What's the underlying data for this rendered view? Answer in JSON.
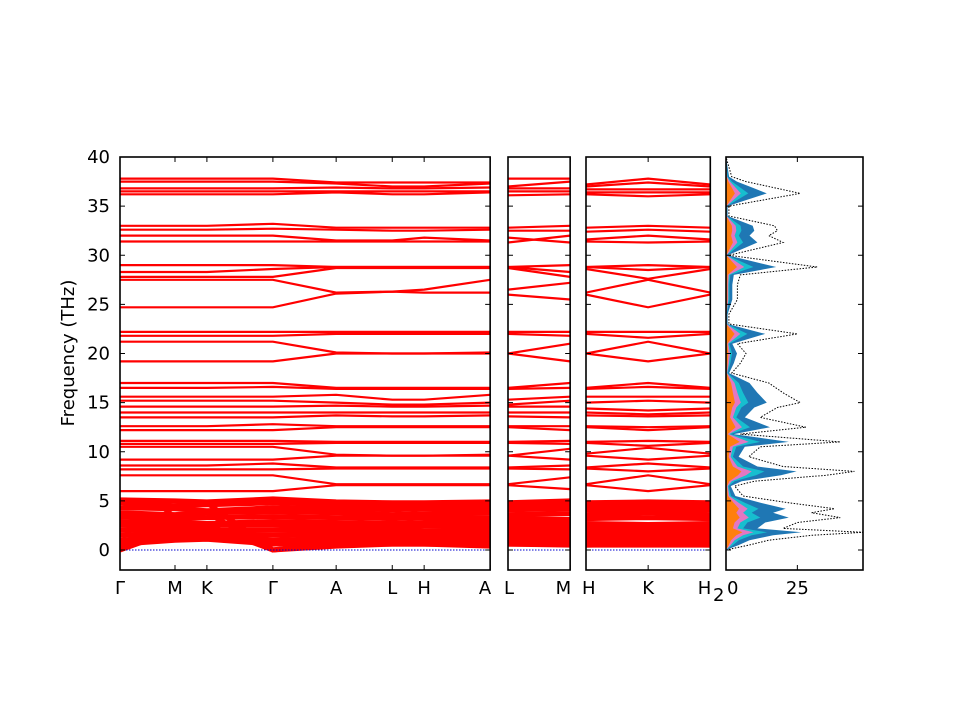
{
  "chart_data": {
    "type": "line",
    "title": "",
    "ylabel": "Frequency (THz)",
    "ylim": [
      -2,
      40
    ],
    "yticks": [
      0,
      5,
      10,
      15,
      20,
      25,
      30,
      35,
      40
    ],
    "band_color": "#ff0000",
    "zero_line_color": "#0000cc",
    "kpoint_order": [
      "Γ",
      "M",
      "K",
      "Γ",
      "A",
      "L",
      "H",
      "A",
      "L",
      "M",
      "H",
      "K",
      "H"
    ],
    "panels": [
      {
        "labels": [
          "Γ",
          "M",
          "K",
          "Γ",
          "A",
          "L",
          "H",
          "A"
        ],
        "distances": [
          0,
          1,
          1.58,
          2.78,
          3.93,
          4.95,
          5.53,
          6.73
        ],
        "start": 0
      },
      {
        "labels": [
          "L",
          "M"
        ],
        "distances": [
          0,
          1.13
        ],
        "start": 8
      },
      {
        "labels": [
          "H",
          "K",
          "H"
        ],
        "distances": [
          0,
          1.13,
          2.26
        ],
        "start": 10
      }
    ],
    "stray_label": "2",
    "bands": [
      [
        37.8,
        37.8,
        37.8,
        37.8,
        37.4,
        37.4,
        37.4,
        37.4,
        37.8,
        37.8,
        37.2,
        37.8,
        37.2
      ],
      [
        37.5,
        37.5,
        37.5,
        37.5,
        37.3,
        37.0,
        37.0,
        37.3,
        37.0,
        37.5,
        37.0,
        37.4,
        37.0
      ],
      [
        36.8,
        36.8,
        36.8,
        36.8,
        36.9,
        36.8,
        36.8,
        36.9,
        36.8,
        36.8,
        36.7,
        36.7,
        36.7
      ],
      [
        36.5,
        36.5,
        36.5,
        36.5,
        36.5,
        36.5,
        36.5,
        36.5,
        36.5,
        36.5,
        36.4,
        36.4,
        36.4
      ],
      [
        36.2,
        36.2,
        36.2,
        36.2,
        36.4,
        36.2,
        36.2,
        36.4,
        36.1,
        36.2,
        36.2,
        36.0,
        36.2
      ],
      [
        33.0,
        33.0,
        33.0,
        33.2,
        32.8,
        32.8,
        32.8,
        32.8,
        32.8,
        33.0,
        32.8,
        33.0,
        32.8
      ],
      [
        32.6,
        32.6,
        32.6,
        32.7,
        32.6,
        32.5,
        32.5,
        32.6,
        32.5,
        32.5,
        32.4,
        32.6,
        32.4
      ],
      [
        32.0,
        32.0,
        32.0,
        32.0,
        31.5,
        31.5,
        31.8,
        31.5,
        31.3,
        32.0,
        31.6,
        32.0,
        31.6
      ],
      [
        31.4,
        31.4,
        31.4,
        31.4,
        31.4,
        31.4,
        31.4,
        31.4,
        31.8,
        31.3,
        31.4,
        31.3,
        31.4
      ],
      [
        29.0,
        29.0,
        29.0,
        29.0,
        28.8,
        28.8,
        28.8,
        28.8,
        28.8,
        29.0,
        28.8,
        29.0,
        28.8
      ],
      [
        28.3,
        28.3,
        28.3,
        28.6,
        28.8,
        28.8,
        28.8,
        28.8,
        28.8,
        28.3,
        28.8,
        28.5,
        28.8
      ],
      [
        27.8,
        27.8,
        27.8,
        27.8,
        28.7,
        28.7,
        28.7,
        28.7,
        28.7,
        27.8,
        28.6,
        27.6,
        28.6
      ],
      [
        27.5,
        27.5,
        27.5,
        27.5,
        26.2,
        26.3,
        26.5,
        27.5,
        26.5,
        27.2,
        26.2,
        27.5,
        26.2
      ],
      [
        24.7,
        24.7,
        24.7,
        24.7,
        26.1,
        26.3,
        26.2,
        26.2,
        26.0,
        25.5,
        26.0,
        24.7,
        26.0
      ],
      [
        22.2,
        22.2,
        22.2,
        22.2,
        22.2,
        22.2,
        22.2,
        22.2,
        22.2,
        22.2,
        22.2,
        22.2,
        22.2
      ],
      [
        21.8,
        21.8,
        21.8,
        21.8,
        22.0,
        22.0,
        22.0,
        22.0,
        22.0,
        21.8,
        22.0,
        21.6,
        22.0
      ],
      [
        21.2,
        21.2,
        21.2,
        21.2,
        20.1,
        20.0,
        20.0,
        20.1,
        20.0,
        21.0,
        20.0,
        21.2,
        20.0
      ],
      [
        19.2,
        19.2,
        19.2,
        19.2,
        20.0,
        20.0,
        20.0,
        20.0,
        20.0,
        19.2,
        20.0,
        19.2,
        20.0
      ],
      [
        17.0,
        17.0,
        17.0,
        17.0,
        16.5,
        16.5,
        16.5,
        16.5,
        16.5,
        17.0,
        16.5,
        17.0,
        16.5
      ],
      [
        16.5,
        16.5,
        16.5,
        16.6,
        16.4,
        16.4,
        16.4,
        16.4,
        16.4,
        16.5,
        16.4,
        16.6,
        16.4
      ],
      [
        15.6,
        15.6,
        15.6,
        15.6,
        15.8,
        15.3,
        15.3,
        15.8,
        15.3,
        15.6,
        15.6,
        15.6,
        15.6
      ],
      [
        15.2,
        15.2,
        15.2,
        15.2,
        15.0,
        14.8,
        14.8,
        15.0,
        14.8,
        15.2,
        15.0,
        15.2,
        15.0
      ],
      [
        14.6,
        14.6,
        14.6,
        14.6,
        14.7,
        14.6,
        14.6,
        14.7,
        14.6,
        14.6,
        14.4,
        14.2,
        14.4
      ],
      [
        14.0,
        14.0,
        14.0,
        14.0,
        14.0,
        14.0,
        14.0,
        14.0,
        14.0,
        14.0,
        14.0,
        13.8,
        14.0
      ],
      [
        13.5,
        13.5,
        13.5,
        13.5,
        13.7,
        13.6,
        13.6,
        13.7,
        13.6,
        13.5,
        13.7,
        13.6,
        13.7
      ],
      [
        12.6,
        12.6,
        12.6,
        12.8,
        12.6,
        12.6,
        12.6,
        12.6,
        12.6,
        12.6,
        12.6,
        12.5,
        12.6
      ],
      [
        12.2,
        12.2,
        12.2,
        12.2,
        12.5,
        12.5,
        12.5,
        12.5,
        12.5,
        12.2,
        12.5,
        12.2,
        12.5
      ],
      [
        11.1,
        11.1,
        11.1,
        11.1,
        11.0,
        11.0,
        11.0,
        11.0,
        11.0,
        11.1,
        11.0,
        11.1,
        11.0
      ],
      [
        10.8,
        10.8,
        10.8,
        10.8,
        10.9,
        10.9,
        10.9,
        10.9,
        10.9,
        10.8,
        10.9,
        10.6,
        10.9
      ],
      [
        10.5,
        10.5,
        10.5,
        10.5,
        9.7,
        9.6,
        9.6,
        9.7,
        9.6,
        10.3,
        9.8,
        10.4,
        9.8
      ],
      [
        9.2,
        9.2,
        9.2,
        9.2,
        9.6,
        9.6,
        9.6,
        9.6,
        9.6,
        9.2,
        9.6,
        9.2,
        9.6
      ],
      [
        8.6,
        8.6,
        8.6,
        8.8,
        8.4,
        8.4,
        8.4,
        8.4,
        8.4,
        8.6,
        8.4,
        8.8,
        8.4
      ],
      [
        8.2,
        8.2,
        8.2,
        8.2,
        8.3,
        8.3,
        8.3,
        8.3,
        8.3,
        8.2,
        8.3,
        8.0,
        8.3
      ],
      [
        7.6,
        7.6,
        7.6,
        7.6,
        6.7,
        6.7,
        6.7,
        6.7,
        6.7,
        7.4,
        6.7,
        7.6,
        6.7
      ],
      [
        6.0,
        6.0,
        6.0,
        6.0,
        6.6,
        6.6,
        6.6,
        6.6,
        6.6,
        6.2,
        6.6,
        6.0,
        6.6
      ],
      [
        5.1,
        5.0,
        4.9,
        5.2,
        4.9,
        4.8,
        4.8,
        4.9,
        4.8,
        5.0,
        4.8,
        4.9,
        4.8
      ],
      [
        4.8,
        4.5,
        4.6,
        4.8,
        4.6,
        4.5,
        4.6,
        4.6,
        4.5,
        4.6,
        4.5,
        4.4,
        4.5
      ],
      [
        4.3,
        4.2,
        4.0,
        4.3,
        4.2,
        4.1,
        4.2,
        4.2,
        4.1,
        4.2,
        4.1,
        4.0,
        4.1
      ],
      [
        3.8,
        3.6,
        3.8,
        3.9,
        3.8,
        3.6,
        3.7,
        3.8,
        3.6,
        3.7,
        3.6,
        3.8,
        3.6
      ],
      [
        3.4,
        3.2,
        3.3,
        3.4,
        3.3,
        3.2,
        3.3,
        3.3,
        3.2,
        3.1,
        3.2,
        3.3,
        3.2
      ],
      [
        2.9,
        2.8,
        2.7,
        2.9,
        2.8,
        2.7,
        2.8,
        2.8,
        2.7,
        2.8,
        2.7,
        2.6,
        2.7
      ],
      [
        2.5,
        2.4,
        2.5,
        2.5,
        2.4,
        2.3,
        2.4,
        2.4,
        2.3,
        2.4,
        2.3,
        2.4,
        2.3
      ],
      [
        2.0,
        2.2,
        2.0,
        2.0,
        2.0,
        2.0,
        1.9,
        2.0,
        2.0,
        2.0,
        1.9,
        2.1,
        1.9
      ],
      [
        1.5,
        1.8,
        1.6,
        1.5,
        1.6,
        1.6,
        1.5,
        1.6,
        1.6,
        1.7,
        1.5,
        1.7,
        1.5
      ],
      [
        1.0,
        1.4,
        1.3,
        1.0,
        1.2,
        1.2,
        1.2,
        1.2,
        1.2,
        1.3,
        1.1,
        1.3,
        1.1
      ],
      [
        0.6,
        1.0,
        1.1,
        0.6,
        0.9,
        0.9,
        0.8,
        0.9,
        0.9,
        1.0,
        0.8,
        1.0,
        0.8
      ],
      [
        0.0,
        4.5,
        4.8,
        0.0,
        0.9,
        0.8,
        0.7,
        0.9,
        0.8,
        0.7,
        0.6,
        0.7,
        0.6
      ],
      [
        0.0,
        3.5,
        3.8,
        0.0,
        0.6,
        0.6,
        0.6,
        0.6,
        0.6,
        0.6,
        0.5,
        0.6,
        0.5
      ],
      [
        0.0,
        2.0,
        2.5,
        0.0,
        0.4,
        0.6,
        0.6,
        0.4,
        0.6,
        0.5,
        0.5,
        0.5,
        0.5
      ]
    ],
    "dos": {
      "xlim": [
        0,
        48
      ],
      "xticks": [
        0,
        25
      ],
      "total": [
        [
          0,
          0
        ],
        [
          0.5,
          8
        ],
        [
          1.0,
          15
        ],
        [
          1.5,
          30
        ],
        [
          1.8,
          48
        ],
        [
          2.2,
          20
        ],
        [
          2.8,
          25
        ],
        [
          3.3,
          40
        ],
        [
          3.8,
          30
        ],
        [
          4.2,
          38
        ],
        [
          4.8,
          22
        ],
        [
          5.5,
          6
        ],
        [
          6.5,
          3
        ],
        [
          7.0,
          10
        ],
        [
          7.6,
          35
        ],
        [
          8.0,
          45
        ],
        [
          8.5,
          20
        ],
        [
          9.5,
          8
        ],
        [
          10.5,
          12
        ],
        [
          11,
          40
        ],
        [
          11.8,
          5
        ],
        [
          12.5,
          28
        ],
        [
          13.5,
          12
        ],
        [
          14.5,
          18
        ],
        [
          15,
          26
        ],
        [
          16,
          20
        ],
        [
          17,
          15
        ],
        [
          18,
          2
        ],
        [
          19,
          5
        ],
        [
          20,
          7
        ],
        [
          21,
          4
        ],
        [
          22,
          25
        ],
        [
          23,
          1
        ],
        [
          24,
          1
        ],
        [
          25.5,
          4
        ],
        [
          27,
          4
        ],
        [
          28,
          5
        ],
        [
          28.8,
          32
        ],
        [
          30,
          1
        ],
        [
          31.3,
          20
        ],
        [
          32,
          15
        ],
        [
          32.5,
          18
        ],
        [
          33,
          17
        ],
        [
          34,
          1
        ],
        [
          35,
          1
        ],
        [
          36.3,
          26
        ],
        [
          36.8,
          18
        ],
        [
          37.5,
          7
        ],
        [
          38,
          2
        ],
        [
          40,
          0
        ]
      ],
      "partials": [
        {
          "color": "#1f77b4",
          "scale": 0.55
        },
        {
          "color": "#17becf",
          "scale": 0.3
        },
        {
          "color": "#e377c2",
          "scale": 0.2
        },
        {
          "color": "#ff7f0e",
          "scale": 0.12
        }
      ]
    }
  }
}
